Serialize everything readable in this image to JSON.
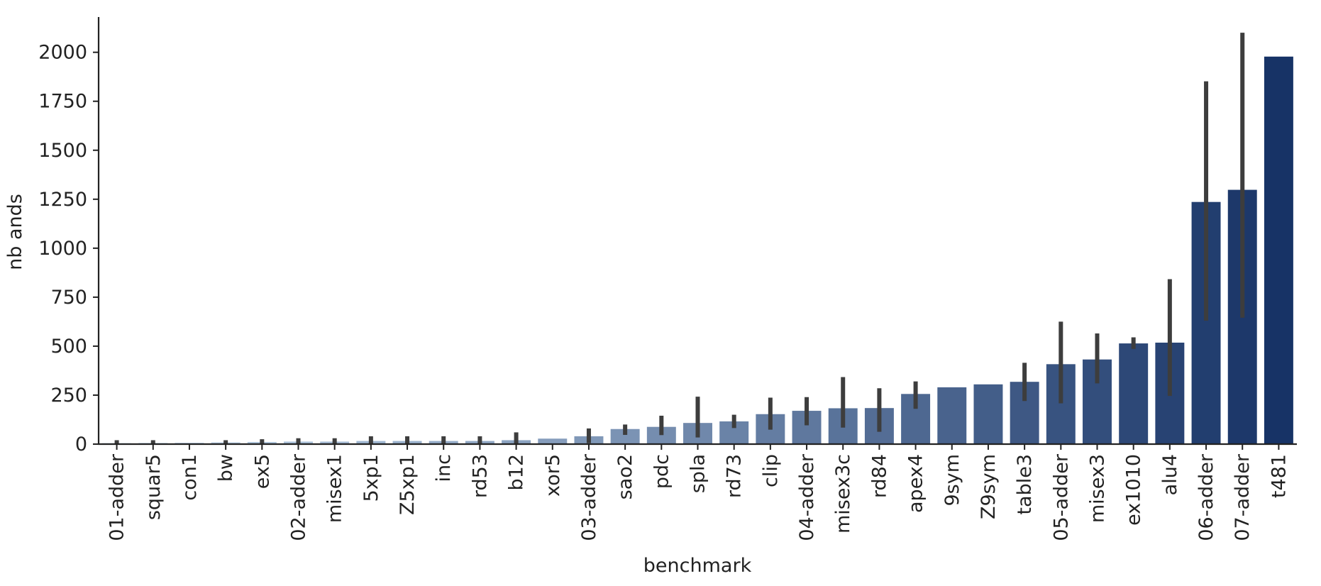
{
  "chart_data": {
    "type": "bar",
    "title": "",
    "xlabel": "benchmark",
    "ylabel": "nb ands",
    "ylim": [
      0,
      2180
    ],
    "yticks": [
      0,
      250,
      500,
      750,
      1000,
      1250,
      1500,
      1750,
      2000
    ],
    "grid": false,
    "legend": "none",
    "palette": "Blues",
    "error_bar_color": "#3d3d3d",
    "categories": [
      "01-adder",
      "squar5",
      "con1",
      "bw",
      "ex5",
      "02-adder",
      "misex1",
      "5xp1",
      "Z5xp1",
      "inc",
      "rd53",
      "b12",
      "xor5",
      "03-adder",
      "sao2",
      "pdc",
      "spla",
      "rd73",
      "clip",
      "04-adder",
      "misex3c",
      "rd84",
      "apex4",
      "9sym",
      "Z9sym",
      "table3",
      "05-adder",
      "misex3",
      "ex1010",
      "alu4",
      "06-adder",
      "07-adder",
      "t481"
    ],
    "values": [
      5,
      6,
      7,
      9,
      11,
      13,
      13,
      16,
      16,
      16,
      16,
      20,
      28,
      40,
      77,
      88,
      108,
      116,
      153,
      170,
      183,
      184,
      256,
      290,
      305,
      318,
      408,
      432,
      514,
      518,
      1236,
      1298,
      1978
    ],
    "error_low": [
      0,
      0,
      null,
      0,
      0,
      0,
      0,
      0,
      0,
      0,
      0,
      0,
      null,
      5,
      47,
      46,
      34,
      82,
      74,
      96,
      84,
      63,
      180,
      null,
      null,
      220,
      208,
      310,
      486,
      246,
      630,
      645,
      null
    ],
    "error_high": [
      20,
      20,
      null,
      20,
      25,
      30,
      30,
      40,
      40,
      40,
      40,
      60,
      null,
      80,
      100,
      145,
      242,
      150,
      237,
      240,
      342,
      285,
      320,
      null,
      null,
      415,
      625,
      565,
      545,
      842,
      1852,
      2100,
      null
    ]
  }
}
